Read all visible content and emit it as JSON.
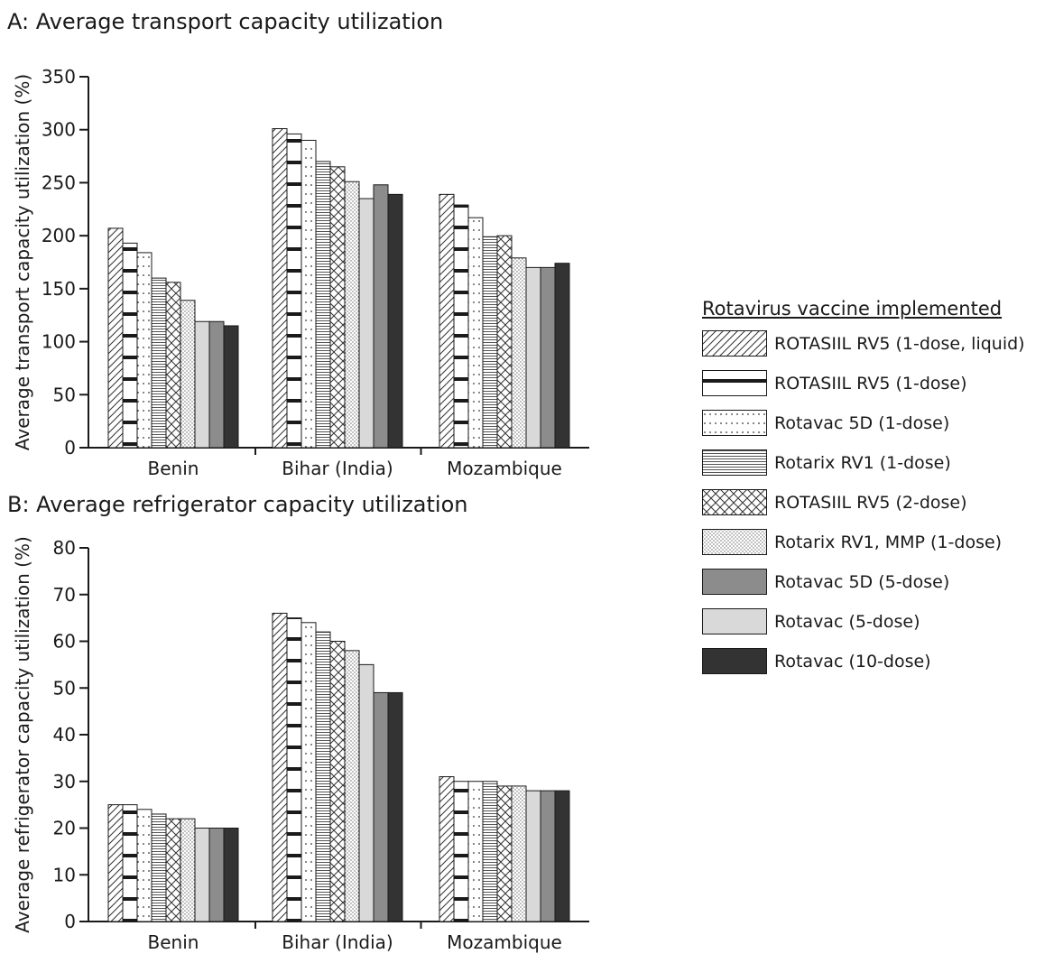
{
  "chart_data": [
    {
      "type": "bar",
      "title": "A: Average transport capacity utilization",
      "ylabel": "Average transport capacity utilization (%)",
      "xlabel": "",
      "ylim": [
        0,
        350
      ],
      "yticks": [
        0,
        50,
        100,
        150,
        200,
        250,
        300,
        350
      ],
      "categories": [
        "Benin",
        "Bihar (India)",
        "Mozambique"
      ],
      "series": [
        {
          "name": "ROTASIIL RV5 (1-dose, liquid)",
          "values": [
            207,
            301,
            239
          ]
        },
        {
          "name": "ROTASIIL RV5 (1-dose)",
          "values": [
            193,
            296,
            229
          ]
        },
        {
          "name": "Rotavac 5D (1-dose)",
          "values": [
            184,
            290,
            217
          ]
        },
        {
          "name": "Rotarix RV1 (1-dose)",
          "values": [
            160,
            270,
            199
          ]
        },
        {
          "name": "ROTASIIL RV5 (2-dose)",
          "values": [
            156,
            265,
            200
          ]
        },
        {
          "name": "Rotarix RV1, MMP (1-dose)",
          "values": [
            139,
            251,
            179
          ]
        },
        {
          "name": "Rotavac (5-dose)",
          "values": [
            119,
            235,
            170
          ]
        },
        {
          "name": "Rotavac 5D (5-dose)",
          "values": [
            119,
            248,
            170
          ]
        },
        {
          "name": "Rotavac (10-dose)",
          "values": [
            115,
            239,
            174
          ]
        }
      ],
      "grid": false,
      "legend_position": "right"
    },
    {
      "type": "bar",
      "title": "B: Average refrigerator capacity utilization",
      "ylabel": "Average refrigerator capacity utilization (%)",
      "xlabel": "",
      "ylim": [
        0,
        80
      ],
      "yticks": [
        0,
        10,
        20,
        30,
        40,
        50,
        60,
        70,
        80
      ],
      "categories": [
        "Benin",
        "Bihar (India)",
        "Mozambique"
      ],
      "series": [
        {
          "name": "ROTASIIL RV5 (1-dose, liquid)",
          "values": [
            25,
            66,
            31
          ]
        },
        {
          "name": "ROTASIIL RV5 (1-dose)",
          "values": [
            25,
            65,
            30
          ]
        },
        {
          "name": "Rotavac 5D (1-dose)",
          "values": [
            24,
            64,
            30
          ]
        },
        {
          "name": "Rotarix RV1 (1-dose)",
          "values": [
            23,
            62,
            30
          ]
        },
        {
          "name": "ROTASIIL RV5 (2-dose)",
          "values": [
            22,
            60,
            29
          ]
        },
        {
          "name": "Rotarix RV1, MMP (1-dose)",
          "values": [
            22,
            58,
            29
          ]
        },
        {
          "name": "Rotavac (5-dose)",
          "values": [
            20,
            55,
            28
          ]
        },
        {
          "name": "Rotavac 5D (5-dose)",
          "values": [
            20,
            49,
            28
          ]
        },
        {
          "name": "Rotavac (10-dose)",
          "values": [
            20,
            49,
            28
          ]
        }
      ],
      "grid": false,
      "legend_position": "right"
    }
  ],
  "legend": {
    "heading": "Rotavirus vaccine implemented",
    "items": [
      {
        "label": "ROTASIIL RV5 (1-dose, liquid)",
        "pattern": "diagonal-hatch"
      },
      {
        "label": "ROTASIIL RV5 (1-dose)",
        "pattern": "ladder"
      },
      {
        "label": "Rotavac 5D (1-dose)",
        "pattern": "dots"
      },
      {
        "label": "Rotarix RV1 (1-dose)",
        "pattern": "horizontal-lines"
      },
      {
        "label": "ROTASIIL RV5 (2-dose)",
        "pattern": "crosshatch"
      },
      {
        "label": "Rotarix RV1, MMP (1-dose)",
        "pattern": "fine-dots"
      },
      {
        "label": "Rotavac 5D (5-dose)",
        "pattern": "solid-medium-gray"
      },
      {
        "label": "Rotavac (5-dose)",
        "pattern": "solid-light-gray"
      },
      {
        "label": "Rotavac (10-dose)",
        "pattern": "solid-dark"
      }
    ]
  },
  "colors": {
    "axis": "#1a1a1a",
    "medium_gray": "#8c8c8c",
    "light_gray": "#d9d9d9",
    "dark": "#333333"
  }
}
